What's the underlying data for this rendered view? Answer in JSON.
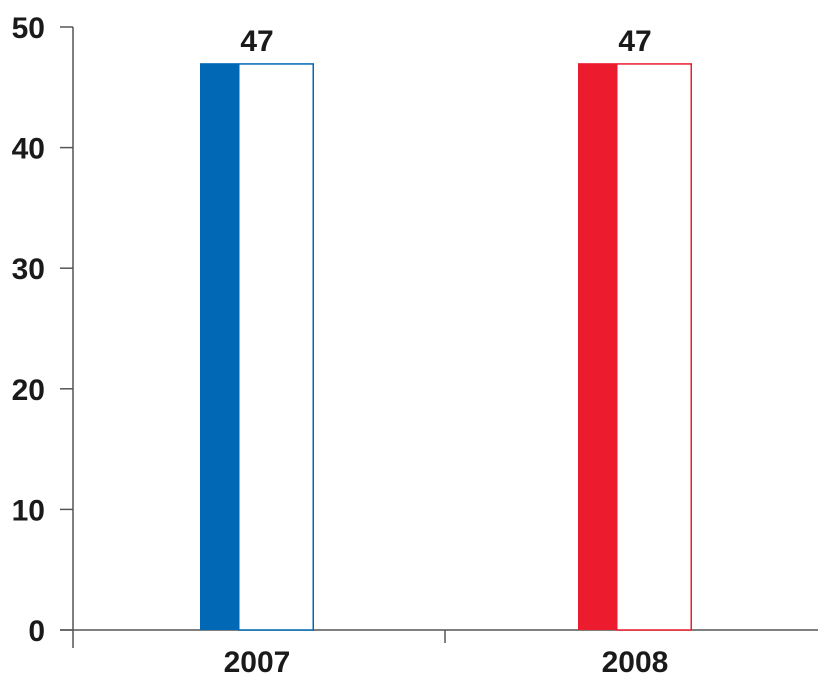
{
  "chart_data": {
    "type": "bar",
    "categories": [
      "2007",
      "2008"
    ],
    "values": [
      47,
      47
    ],
    "data_labels": [
      "47",
      "47"
    ],
    "colors": [
      "#0068b4",
      "#ec1c2e"
    ],
    "title": "",
    "xlabel": "",
    "ylabel": "",
    "ylim": [
      0,
      50
    ],
    "yticks": [
      "0",
      "10",
      "20",
      "30",
      "40",
      "50"
    ],
    "grid": false,
    "legend": "none"
  }
}
